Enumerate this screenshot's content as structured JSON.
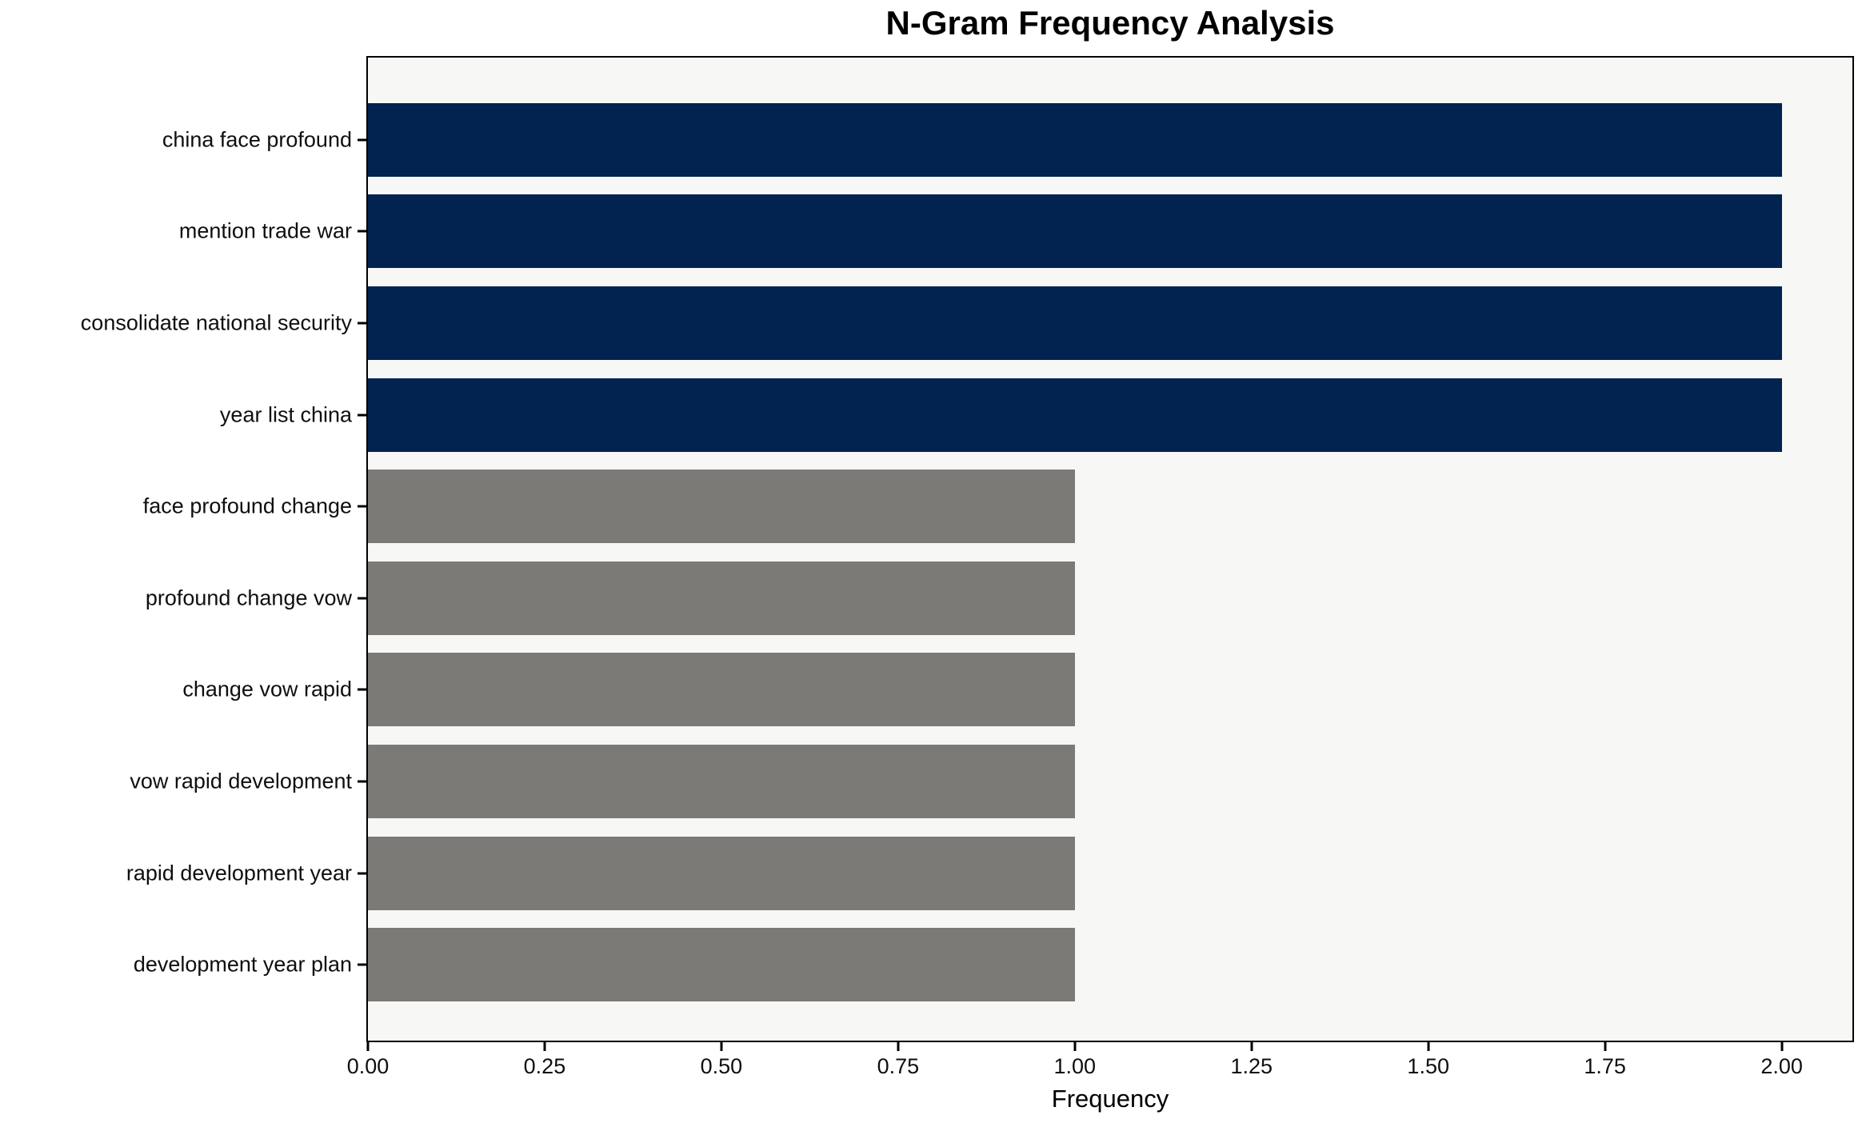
{
  "chart_data": {
    "type": "bar",
    "orientation": "horizontal",
    "title": "N-Gram Frequency Analysis",
    "xlabel": "Frequency",
    "ylabel": "",
    "categories": [
      "china face profound",
      "mention trade war",
      "consolidate national security",
      "year list china",
      "face profound change",
      "profound change vow",
      "change vow rapid",
      "vow rapid development",
      "rapid development year",
      "development year plan"
    ],
    "values": [
      2,
      2,
      2,
      2,
      1,
      1,
      1,
      1,
      1,
      1
    ],
    "bar_colors": [
      "#02234f",
      "#02234f",
      "#02234f",
      "#02234f",
      "#7b7a76",
      "#7b7a76",
      "#7b7a76",
      "#7b7a76",
      "#7b7a76",
      "#7b7a76"
    ],
    "xlim": [
      0,
      2.1
    ],
    "x_ticks": [
      0,
      0.25,
      0.5,
      0.75,
      1,
      1.25,
      1.5,
      1.75,
      2
    ],
    "x_tick_labels": [
      "0.00",
      "0.25",
      "0.50",
      "0.75",
      "1.00",
      "1.25",
      "1.50",
      "1.75",
      "2.00"
    ],
    "grid": false,
    "legend": false,
    "plot_bg": "#f7f7f6",
    "figure_bg": "#ffffff",
    "accent_navy": "#02234f",
    "accent_gray": "#7b7a76"
  }
}
